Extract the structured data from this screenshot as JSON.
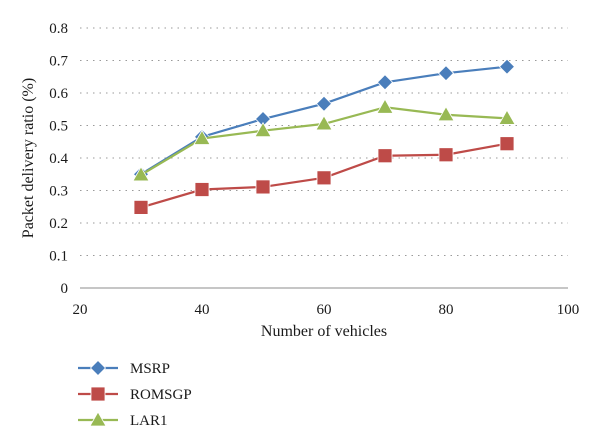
{
  "chart_data": {
    "type": "line",
    "title": "",
    "xlabel": "Number of vehicles",
    "ylabel": "Packet delivery ratio (%)",
    "xlim": [
      20,
      100
    ],
    "ylim": [
      0,
      0.8
    ],
    "x_ticks": [
      "20",
      "40",
      "60",
      "80",
      "100"
    ],
    "y_ticks": [
      "0",
      "0.1",
      "0.2",
      "0.3",
      "0.4",
      "0.5",
      "0.6",
      "0.7",
      "0.8"
    ],
    "grid": "horizontal dotted",
    "legend_position": "below",
    "x": [
      30,
      40,
      50,
      60,
      70,
      80,
      90
    ],
    "series": [
      {
        "name": "MSRP",
        "marker": "diamond",
        "color": "#4a7ebb",
        "values": [
          0.35,
          0.465,
          0.52,
          0.567,
          0.633,
          0.661,
          0.681
        ]
      },
      {
        "name": "ROMSGP",
        "marker": "square",
        "color": "#be4b48",
        "values": [
          0.248,
          0.303,
          0.311,
          0.339,
          0.407,
          0.41,
          0.444
        ]
      },
      {
        "name": "LAR1",
        "marker": "triangle",
        "color": "#98b954",
        "values": [
          0.348,
          0.46,
          0.484,
          0.505,
          0.556,
          0.533,
          0.522
        ]
      }
    ]
  }
}
